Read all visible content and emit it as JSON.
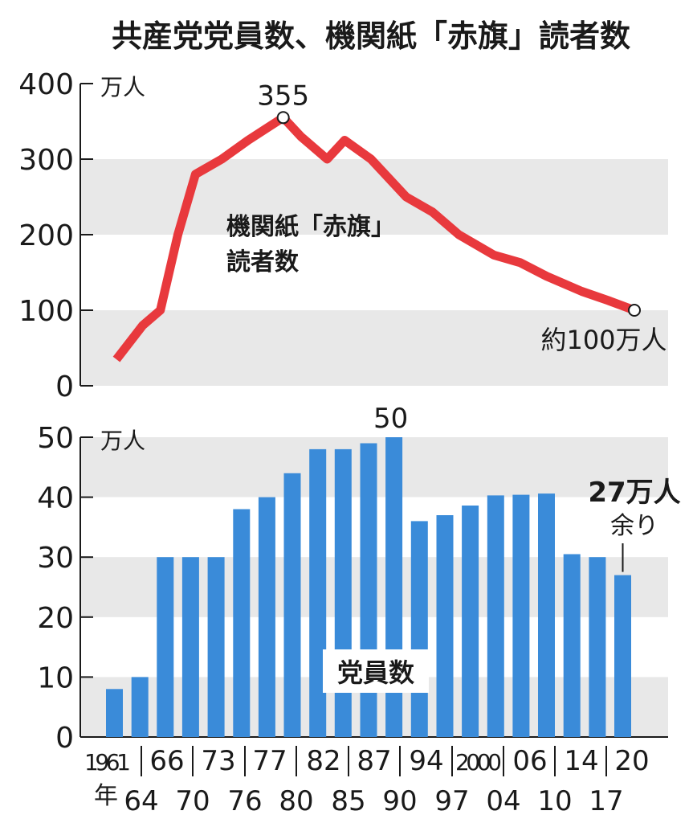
{
  "title": "共産党党員数、機関紙「赤旗」読者数",
  "chart_data": [
    {
      "type": "line",
      "unit_label": "万人",
      "ylim": [
        0,
        400
      ],
      "yticks": [
        "0",
        "100",
        "200",
        "300",
        "400"
      ],
      "grid_bands": true,
      "series": [
        {
          "label_line1": "機関紙「赤旗」",
          "label_line2": "読者数",
          "color": "#e8393d",
          "x": [
            1961,
            1964,
            1966,
            1968,
            1970,
            1973,
            1976,
            1978,
            1980,
            1982,
            1985,
            1987,
            1990,
            1994,
            1997,
            2000,
            2004,
            2007,
            2010,
            2014,
            2017,
            2020
          ],
          "y": [
            35,
            80,
            100,
            200,
            280,
            300,
            325,
            340,
            355,
            330,
            300,
            325,
            300,
            250,
            230,
            200,
            173,
            163,
            145,
            125,
            113,
            100
          ]
        }
      ],
      "annotations": {
        "peak_value": "355",
        "end_text": "約100万人"
      }
    },
    {
      "type": "bar",
      "unit_label": "万人",
      "ylim": [
        0,
        50
      ],
      "yticks": [
        "0",
        "10",
        "20",
        "30",
        "40",
        "50"
      ],
      "grid_bands": true,
      "series_label": "党員数",
      "color": "#3a8bd9",
      "values": [
        8,
        10,
        30,
        30,
        30,
        38,
        40,
        44,
        48,
        48,
        49,
        50,
        36,
        37,
        38.6,
        40.3,
        40.4,
        40.6,
        30.5,
        30,
        27
      ],
      "annotations": {
        "peak_value": "50",
        "end_line1": "27万人",
        "end_line2": "余り"
      },
      "xaxis": {
        "upper": [
          "1961",
          "66",
          "73",
          "77",
          "82",
          "87",
          "94",
          "2000",
          "06",
          "14",
          "20"
        ],
        "lower": [
          "64",
          "70",
          "76",
          "80",
          "85",
          "90",
          "97",
          "04",
          "10",
          "17"
        ],
        "year_suffix": "年"
      }
    }
  ]
}
